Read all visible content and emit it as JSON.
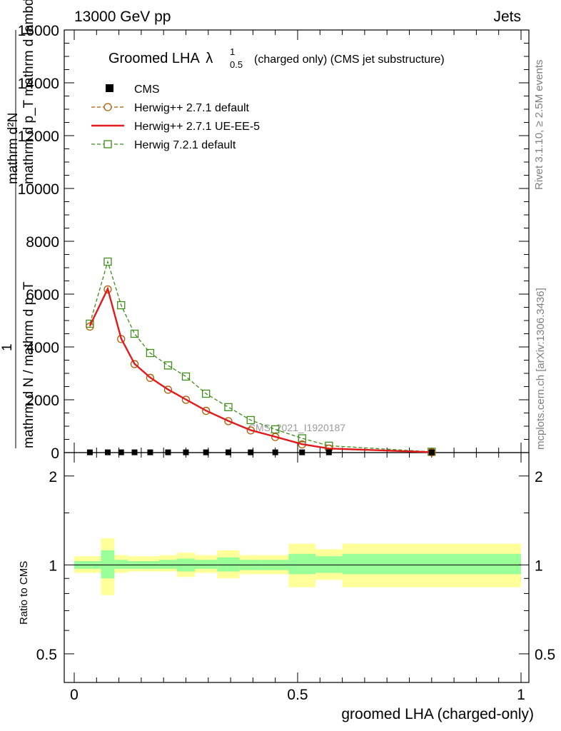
{
  "header": {
    "left": "13000 GeV pp",
    "right": "Jets"
  },
  "side_text": {
    "rivet": "Rivet 3.1.10, ≥ 2.5M events",
    "mcplots": "mcplots.cern.ch [arXiv:1306.3436]"
  },
  "chart_data": {
    "type": "line",
    "title": "Groomed LHA",
    "title_symbol": "λ",
    "title_sup": "1",
    "title_sub": "0.5",
    "title_suffix": "(charged only) (CMS jet substructure)",
    "watermark": "CMS_2021_I1920187",
    "ylabel_main_top": "mathrm d²N",
    "ylabel_main_bottom": "mathrm d p_T mathrm d lambda",
    "ylabel_main_prefix": "1",
    "ylabel_main_frac_top": "mathrm d N / mathrm d p_T",
    "ylabel_main_frac_bottom": "mathrm d N / mathrm d p_T",
    "ylabel_ratio": "Ratio to CMS",
    "xlabel": "groomed LHA (charged-only)",
    "xlim": [
      0,
      1
    ],
    "ylim": [
      0,
      16000
    ],
    "x_ticks": [
      "0",
      "0.5",
      "1"
    ],
    "x_tick_values": [
      0,
      0.5,
      1
    ],
    "y_ticks": [
      "0",
      "2000",
      "4000",
      "6000",
      "8000",
      "10000",
      "12000",
      "14000",
      "16000"
    ],
    "y_tick_values": [
      0,
      2000,
      4000,
      6000,
      8000,
      10000,
      12000,
      14000,
      16000
    ],
    "ratio_ylim": [
      0.4,
      2.4
    ],
    "ratio_ticks": [
      "0.5",
      "1",
      "2"
    ],
    "ratio_tick_values": [
      0.5,
      1,
      2
    ],
    "legend": [
      {
        "label": "CMS",
        "style": "marker-square-filled",
        "color": "#000000"
      },
      {
        "label": "Herwig++ 2.7.1 default",
        "style": "dashed-circle",
        "color": "#b35900"
      },
      {
        "label": "Herwig++ 2.7.1 UE-EE-5",
        "style": "solid",
        "color": "#e31a1c"
      },
      {
        "label": "Herwig 7.2.1 default",
        "style": "dashed-square",
        "color": "#3d8f1a"
      }
    ],
    "cms": {
      "x": [
        0.035,
        0.075,
        0.105,
        0.135,
        0.17,
        0.21,
        0.25,
        0.295,
        0.345,
        0.395,
        0.45,
        0.51,
        0.57,
        0.8
      ],
      "y": [
        10,
        10,
        10,
        10,
        10,
        10,
        10,
        10,
        10,
        10,
        10,
        10,
        10,
        10
      ]
    },
    "series": [
      {
        "name": "Herwig++ 2.7.1 default",
        "x": [
          0.035,
          0.075,
          0.105,
          0.135,
          0.17,
          0.21,
          0.25,
          0.295,
          0.345,
          0.395,
          0.45,
          0.51,
          0.57,
          0.8
        ],
        "values": [
          4770,
          6180,
          4300,
          3350,
          2830,
          2380,
          2000,
          1580,
          1190,
          840,
          590,
          310,
          150,
          15
        ]
      },
      {
        "name": "Herwig++ 2.7.1 UE-EE-5",
        "x": [
          0.035,
          0.075,
          0.105,
          0.135,
          0.17,
          0.21,
          0.25,
          0.295,
          0.345,
          0.395,
          0.45,
          0.51,
          0.57,
          0.8
        ],
        "values": [
          4800,
          6200,
          4320,
          3360,
          2840,
          2390,
          2010,
          1590,
          1200,
          850,
          600,
          320,
          155,
          15
        ]
      },
      {
        "name": "Herwig 7.2.1 default",
        "x": [
          0.035,
          0.075,
          0.105,
          0.135,
          0.17,
          0.21,
          0.25,
          0.295,
          0.345,
          0.395,
          0.45,
          0.51,
          0.57,
          0.8
        ],
        "values": [
          4880,
          7230,
          5580,
          4500,
          3770,
          3300,
          2880,
          2230,
          1720,
          1230,
          880,
          540,
          260,
          30
        ]
      }
    ],
    "ratio_bands": {
      "edges": [
        0.0,
        0.06,
        0.09,
        0.12,
        0.15,
        0.19,
        0.23,
        0.27,
        0.32,
        0.37,
        0.42,
        0.48,
        0.54,
        0.6,
        1.0
      ],
      "inner_lo": [
        0.97,
        0.9,
        0.97,
        0.97,
        0.97,
        0.97,
        0.95,
        0.97,
        0.95,
        0.96,
        0.96,
        0.93,
        0.94,
        0.93
      ],
      "inner_hi": [
        1.03,
        1.12,
        1.04,
        1.03,
        1.03,
        1.04,
        1.05,
        1.04,
        1.06,
        1.04,
        1.04,
        1.09,
        1.07,
        1.09
      ],
      "outer_lo": [
        0.94,
        0.79,
        0.94,
        0.95,
        0.95,
        0.95,
        0.91,
        0.94,
        0.9,
        0.93,
        0.93,
        0.84,
        0.89,
        0.84
      ],
      "outer_hi": [
        1.07,
        1.23,
        1.08,
        1.07,
        1.07,
        1.08,
        1.1,
        1.08,
        1.12,
        1.08,
        1.08,
        1.18,
        1.13,
        1.18
      ]
    },
    "colors": {
      "band_inner": "#99ff99",
      "band_outer": "#ffff99",
      "axis": "#000000",
      "watermark": "#9a9a9a",
      "side_text": "#7f7f7f"
    }
  }
}
